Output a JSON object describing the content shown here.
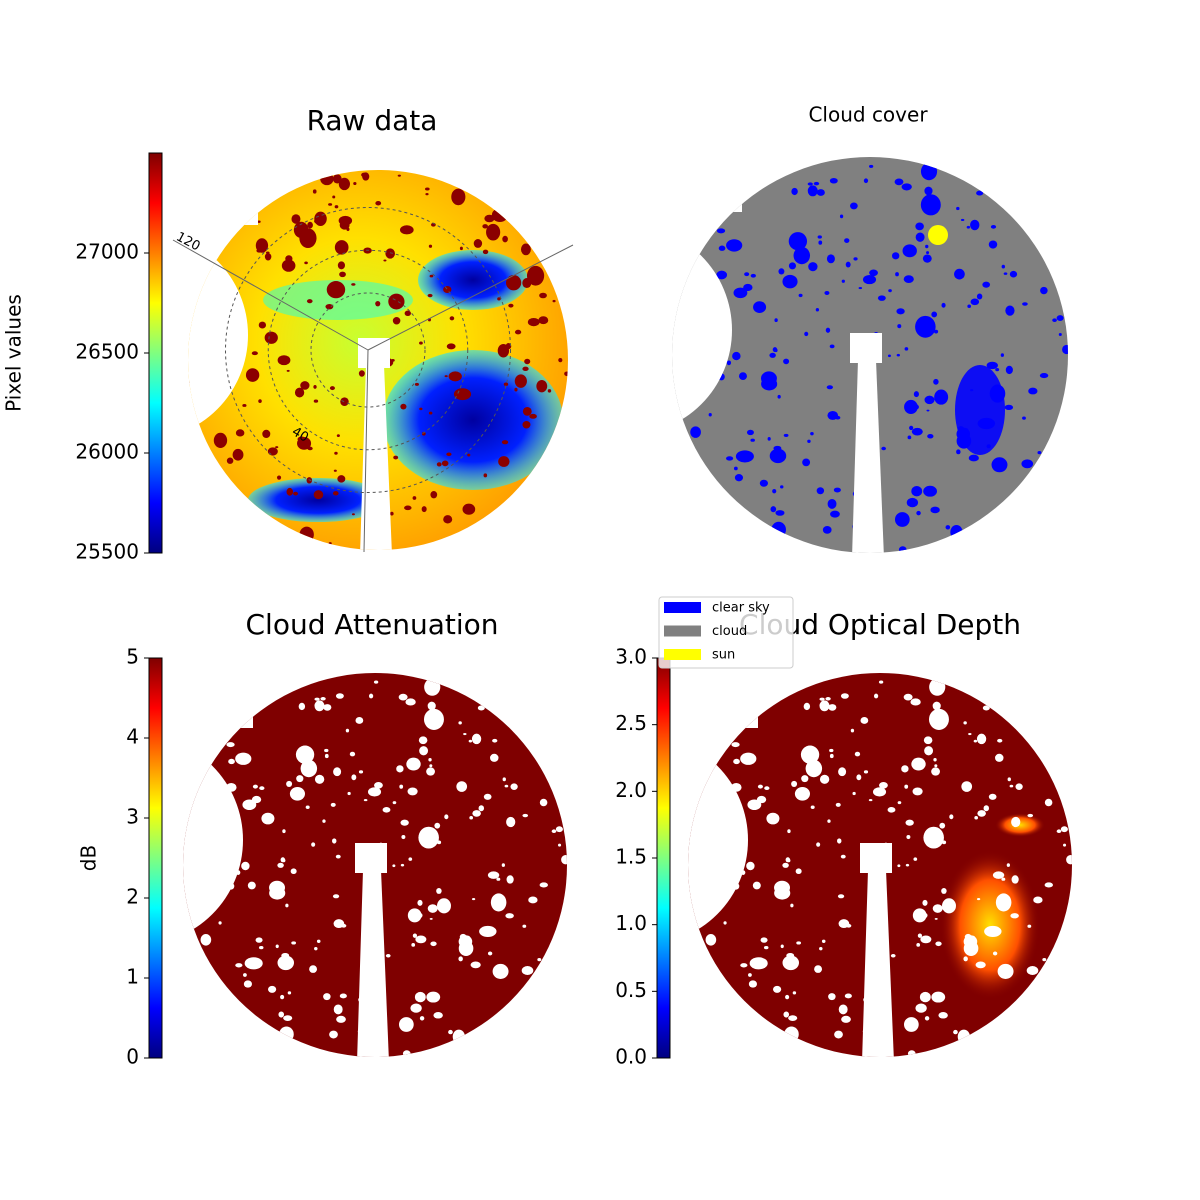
{
  "chart_data": [
    {
      "type": "image",
      "title": "Raw data",
      "colormap": "jet",
      "clabel": "Pixel values",
      "clim": [
        25500,
        27500
      ],
      "cticks": [
        25500,
        26000,
        26500,
        27000
      ],
      "annotations": [
        "120",
        "40"
      ]
    },
    {
      "type": "categorical-image",
      "title": "Cloud cover",
      "series": [
        {
          "name": "clear sky",
          "color": "#0000ff"
        },
        {
          "name": "cloud",
          "color": "#808080"
        },
        {
          "name": "sun",
          "color": "#ffff00"
        }
      ],
      "legend": "lower left"
    },
    {
      "type": "image",
      "title": "Cloud Attenuation",
      "colormap": "jet",
      "clabel": "dB",
      "clim": [
        0,
        5
      ],
      "cticks": [
        0,
        1,
        2,
        3,
        4,
        5
      ]
    },
    {
      "type": "image",
      "title": "Cloud Optical Depth",
      "colormap": "jet",
      "clim": [
        0,
        3
      ],
      "cticks": [
        {
          "value": 0,
          "label": "0.0"
        },
        0.5,
        {
          "value": 1,
          "label": "1.0"
        },
        1.5,
        {
          "value": 2,
          "label": "2.0"
        },
        2.5,
        {
          "value": 3,
          "label": "3.0"
        }
      ]
    }
  ]
}
